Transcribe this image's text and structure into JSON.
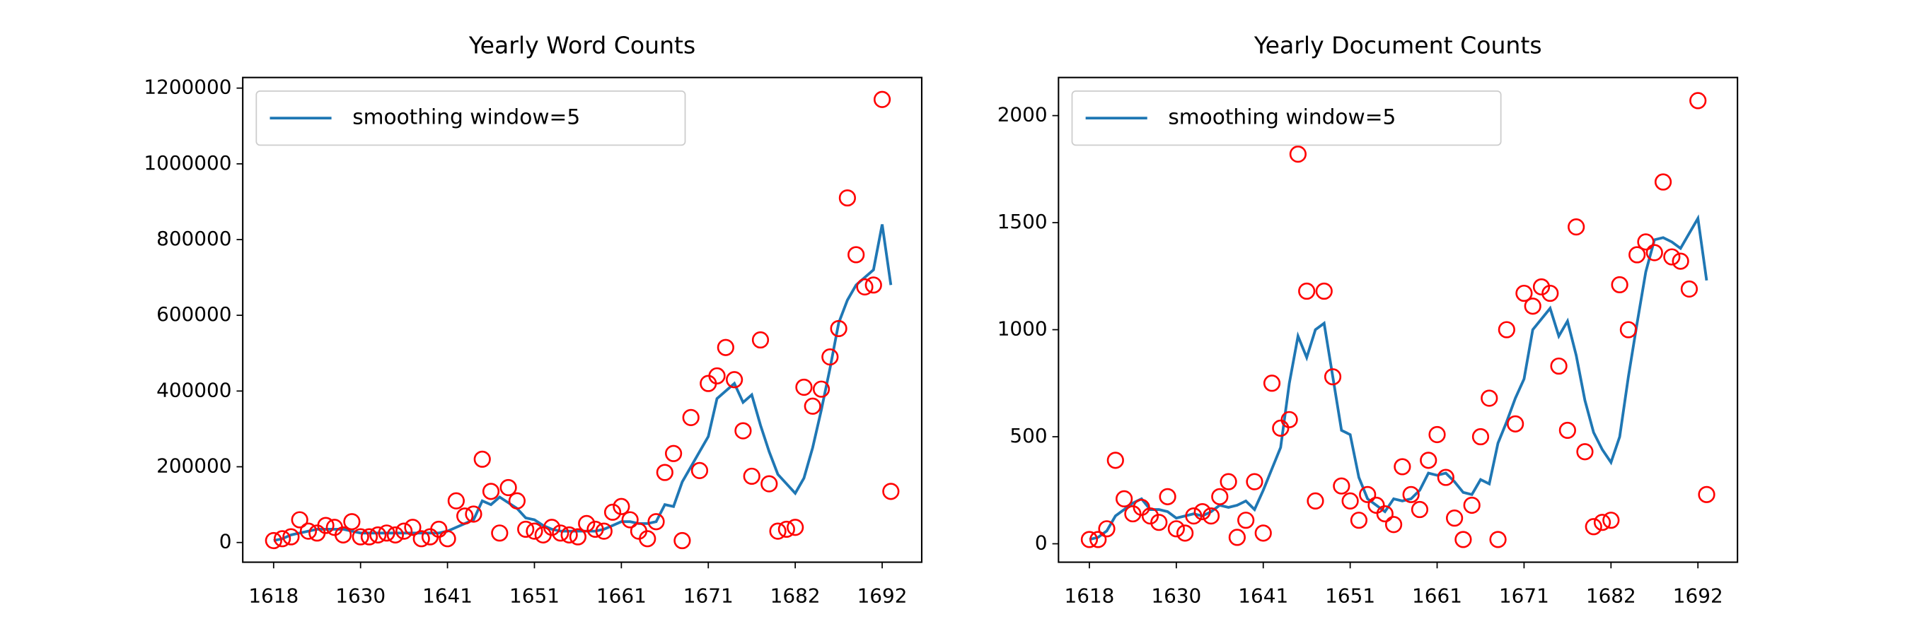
{
  "chart_data": [
    {
      "type": "line",
      "title": "Yearly Word Counts",
      "categories": [
        "1618",
        null,
        null,
        null,
        null,
        null,
        null,
        null,
        null,
        null,
        "1630",
        null,
        null,
        null,
        null,
        null,
        null,
        null,
        null,
        null,
        "1641",
        null,
        null,
        null,
        null,
        null,
        null,
        null,
        null,
        null,
        "1651",
        null,
        null,
        null,
        null,
        null,
        null,
        null,
        null,
        null,
        "1661",
        null,
        null,
        null,
        null,
        null,
        null,
        null,
        null,
        null,
        "1671",
        null,
        null,
        null,
        null,
        null,
        null,
        null,
        null,
        null,
        "1682",
        null,
        null,
        null,
        null,
        null,
        null,
        null,
        null,
        null,
        "1692",
        null
      ],
      "series": [
        {
          "name": "smoothing window=5",
          "color": "#1f77b4",
          "values": [
            5000,
            10000,
            20000,
            25000,
            30000,
            35000,
            35000,
            35000,
            35000,
            30000,
            25000,
            25000,
            25000,
            25000,
            25000,
            25000,
            25000,
            25000,
            25000,
            25000,
            30000,
            40000,
            50000,
            60000,
            110000,
            100000,
            120000,
            105000,
            90000,
            65000,
            60000,
            45000,
            35000,
            30000,
            30000,
            30000,
            30000,
            30000,
            35000,
            45000,
            55000,
            55000,
            50000,
            50000,
            55000,
            100000,
            95000,
            160000,
            200000,
            240000,
            280000,
            380000,
            400000,
            420000,
            370000,
            390000,
            310000,
            240000,
            180000,
            155000,
            130000,
            170000,
            250000,
            350000,
            460000,
            580000,
            640000,
            680000,
            700000,
            720000,
            840000,
            680000
          ]
        }
      ],
      "markers": {
        "color": "#ff0000",
        "values": [
          5000,
          10000,
          15000,
          60000,
          30000,
          25000,
          45000,
          40000,
          20000,
          55000,
          15000,
          15000,
          20000,
          25000,
          20000,
          30000,
          40000,
          10000,
          15000,
          35000,
          10000,
          110000,
          70000,
          75000,
          220000,
          135000,
          25000,
          145000,
          110000,
          35000,
          30000,
          20000,
          40000,
          25000,
          20000,
          15000,
          50000,
          35000,
          30000,
          80000,
          95000,
          60000,
          30000,
          10000,
          55000,
          185000,
          235000,
          5000,
          330000,
          190000,
          420000,
          440000,
          515000,
          430000,
          295000,
          175000,
          535000,
          155000,
          30000,
          35000,
          40000,
          410000,
          360000,
          405000,
          490000,
          565000,
          910000,
          760000,
          675000,
          680000,
          1170000,
          135000
        ]
      },
      "ylim": [
        -52000,
        1228000
      ],
      "yticks": [
        0,
        200000,
        400000,
        600000,
        800000,
        1000000,
        1200000
      ],
      "legend": "upper left"
    },
    {
      "type": "line",
      "title": "Yearly Document Counts",
      "categories": [
        "1618",
        null,
        null,
        null,
        null,
        null,
        null,
        null,
        null,
        null,
        "1630",
        null,
        null,
        null,
        null,
        null,
        null,
        null,
        null,
        null,
        "1641",
        null,
        null,
        null,
        null,
        null,
        null,
        null,
        null,
        null,
        "1651",
        null,
        null,
        null,
        null,
        null,
        null,
        null,
        null,
        null,
        "1661",
        null,
        null,
        null,
        null,
        null,
        null,
        null,
        null,
        null,
        "1671",
        null,
        null,
        null,
        null,
        null,
        null,
        null,
        null,
        null,
        "1682",
        null,
        null,
        null,
        null,
        null,
        null,
        null,
        null,
        null,
        "1692",
        null
      ],
      "series": [
        {
          "name": "smoothing window=5",
          "color": "#1f77b4",
          "values": [
            20,
            30,
            60,
            130,
            160,
            190,
            210,
            160,
            160,
            150,
            120,
            130,
            140,
            130,
            150,
            180,
            170,
            180,
            200,
            160,
            250,
            350,
            450,
            750,
            970,
            870,
            1000,
            1030,
            780,
            530,
            510,
            310,
            210,
            180,
            150,
            210,
            200,
            210,
            250,
            330,
            320,
            330,
            290,
            240,
            230,
            300,
            280,
            470,
            570,
            680,
            770,
            1000,
            1050,
            1100,
            970,
            1040,
            880,
            670,
            520,
            440,
            380,
            500,
            780,
            1030,
            1270,
            1420,
            1430,
            1410,
            1380,
            1450,
            1520,
            1230
          ]
        }
      ],
      "markers": {
        "color": "#ff0000",
        "values": [
          20,
          20,
          70,
          390,
          210,
          140,
          170,
          130,
          100,
          220,
          70,
          50,
          130,
          150,
          130,
          220,
          290,
          30,
          110,
          290,
          50,
          750,
          540,
          580,
          1820,
          1180,
          200,
          1180,
          780,
          270,
          200,
          110,
          230,
          180,
          140,
          90,
          360,
          230,
          160,
          390,
          510,
          310,
          120,
          20,
          180,
          500,
          680,
          20,
          1000,
          560,
          1170,
          1110,
          1200,
          1170,
          830,
          530,
          1480,
          430,
          80,
          100,
          110,
          1210,
          1000,
          1350,
          1410,
          1360,
          1690,
          1340,
          1320,
          1190,
          2070,
          230
        ]
      },
      "ylim": [
        -86,
        2178
      ],
      "yticks": [
        0,
        500,
        1000,
        1500,
        2000
      ],
      "legend": "upper left"
    }
  ]
}
